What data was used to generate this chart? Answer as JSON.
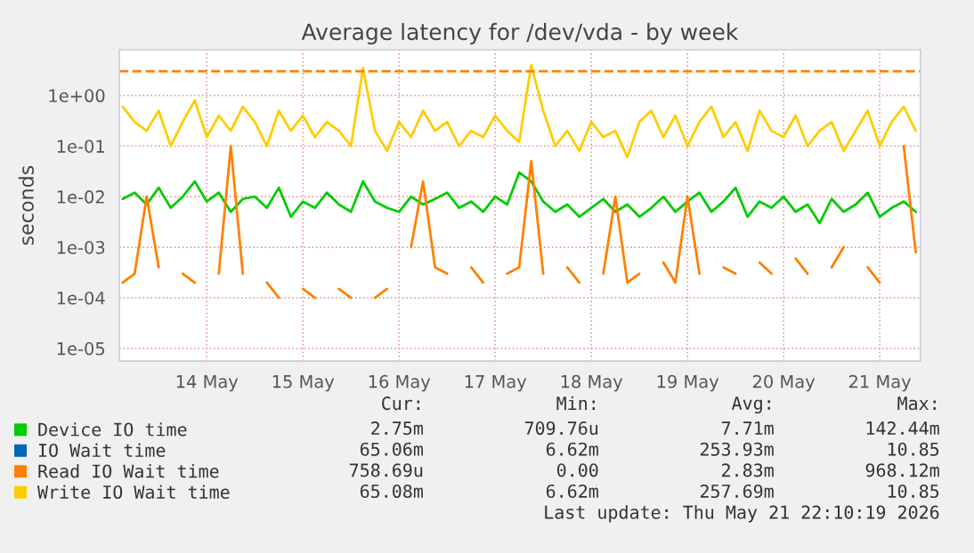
{
  "chart_data": {
    "type": "line",
    "title": "Average latency for /dev/vda - by week",
    "ylabel": "seconds",
    "x": [
      "2026-05-13T15:00",
      "2026-05-13T18:00",
      "2026-05-13T21:00",
      "2026-05-14T00:00",
      "2026-05-14T03:00",
      "2026-05-14T06:00",
      "2026-05-14T09:00",
      "2026-05-14T12:00",
      "2026-05-14T15:00",
      "2026-05-14T18:00",
      "2026-05-14T21:00",
      "2026-05-15T00:00",
      "2026-05-15T03:00",
      "2026-05-15T06:00",
      "2026-05-15T09:00",
      "2026-05-15T12:00",
      "2026-05-15T15:00",
      "2026-05-15T18:00",
      "2026-05-15T21:00",
      "2026-05-16T00:00",
      "2026-05-16T03:00",
      "2026-05-16T06:00",
      "2026-05-16T09:00",
      "2026-05-16T12:00",
      "2026-05-16T15:00",
      "2026-05-16T18:00",
      "2026-05-16T21:00",
      "2026-05-17T00:00",
      "2026-05-17T03:00",
      "2026-05-17T06:00",
      "2026-05-17T09:00",
      "2026-05-17T12:00",
      "2026-05-17T15:00",
      "2026-05-17T18:00",
      "2026-05-17T21:00",
      "2026-05-18T00:00",
      "2026-05-18T03:00",
      "2026-05-18T06:00",
      "2026-05-18T09:00",
      "2026-05-18T12:00",
      "2026-05-18T15:00",
      "2026-05-18T18:00",
      "2026-05-18T21:00",
      "2026-05-19T00:00",
      "2026-05-19T03:00",
      "2026-05-19T06:00",
      "2026-05-19T09:00",
      "2026-05-19T12:00",
      "2026-05-19T15:00",
      "2026-05-19T18:00",
      "2026-05-19T21:00",
      "2026-05-20T00:00",
      "2026-05-20T03:00",
      "2026-05-20T06:00",
      "2026-05-20T09:00",
      "2026-05-20T12:00",
      "2026-05-20T15:00",
      "2026-05-20T18:00",
      "2026-05-20T21:00",
      "2026-05-21T00:00",
      "2026-05-21T03:00",
      "2026-05-21T06:00",
      "2026-05-21T09:00",
      "2026-05-21T12:00",
      "2026-05-21T15:00",
      "2026-05-21T18:00",
      "2026-05-21T21:00"
    ],
    "series": [
      {
        "name": "Device IO time",
        "color": "#00cc00",
        "values": [
          0.009,
          0.012,
          0.007,
          0.015,
          0.006,
          0.01,
          0.02,
          0.008,
          0.012,
          0.005,
          0.009,
          0.01,
          0.006,
          0.015,
          0.004,
          0.008,
          0.006,
          0.012,
          0.007,
          0.005,
          0.02,
          0.008,
          0.006,
          0.005,
          0.01,
          0.007,
          0.009,
          0.012,
          0.006,
          0.008,
          0.005,
          0.01,
          0.007,
          0.03,
          0.02,
          0.008,
          0.005,
          0.007,
          0.004,
          0.006,
          0.009,
          0.005,
          0.007,
          0.004,
          0.006,
          0.01,
          0.005,
          0.008,
          0.012,
          0.005,
          0.008,
          0.015,
          0.004,
          0.008,
          0.006,
          0.01,
          0.005,
          0.007,
          0.003,
          0.009,
          0.005,
          0.007,
          0.012,
          0.004,
          0.006,
          0.008,
          0.005
        ]
      },
      {
        "name": "IO Wait time",
        "color": "#0066b3",
        "values": [
          null,
          null,
          null,
          null,
          null,
          null,
          null,
          null,
          null,
          null,
          null,
          null,
          null,
          null,
          null,
          null,
          null,
          null,
          null,
          null,
          null,
          null,
          null,
          null,
          null,
          null,
          null,
          null,
          null,
          null,
          null,
          null,
          null,
          null,
          null,
          null,
          null,
          null,
          null,
          null,
          null,
          null,
          null,
          null,
          null,
          null,
          null,
          null,
          null,
          null,
          null,
          null,
          null,
          null,
          null,
          null,
          null,
          null,
          null,
          null,
          null,
          null,
          null,
          null,
          null,
          null,
          null
        ]
      },
      {
        "name": "Read IO Wait time",
        "color": "#ff8000",
        "values": [
          0.0002,
          0.0003,
          0.01,
          0.0004,
          null,
          0.0003,
          0.0002,
          null,
          0.0003,
          0.1,
          0.0003,
          null,
          0.0002,
          0.0001,
          null,
          0.00015,
          0.0001,
          null,
          0.00015,
          0.0001,
          null,
          0.0001,
          0.00015,
          null,
          0.001,
          0.02,
          0.0004,
          0.0003,
          null,
          0.0004,
          0.0002,
          null,
          0.0003,
          0.0004,
          0.05,
          0.0003,
          null,
          0.0004,
          0.0002,
          null,
          0.0003,
          0.01,
          0.0002,
          0.0003,
          null,
          0.0005,
          0.0002,
          0.01,
          0.0003,
          null,
          0.0004,
          0.0003,
          null,
          0.0005,
          0.0003,
          null,
          0.0006,
          0.0003,
          null,
          0.0004,
          0.001,
          null,
          0.0004,
          0.0002,
          null,
          0.1,
          0.0008
        ]
      },
      {
        "name": "Write IO Wait time",
        "color": "#ffcc00",
        "values": [
          0.6,
          0.3,
          0.2,
          0.5,
          0.1,
          0.3,
          0.8,
          0.15,
          0.4,
          0.2,
          0.6,
          0.3,
          0.1,
          0.5,
          0.2,
          0.4,
          0.15,
          0.3,
          0.2,
          0.1,
          3.5,
          0.2,
          0.08,
          0.3,
          0.15,
          0.5,
          0.2,
          0.3,
          0.1,
          0.2,
          0.15,
          0.4,
          0.2,
          0.12,
          4.0,
          0.5,
          0.1,
          0.2,
          0.08,
          0.3,
          0.15,
          0.2,
          0.06,
          0.3,
          0.5,
          0.15,
          0.4,
          0.1,
          0.3,
          0.6,
          0.15,
          0.3,
          0.08,
          0.5,
          0.2,
          0.15,
          0.4,
          0.1,
          0.2,
          0.3,
          0.08,
          0.2,
          0.5,
          0.1,
          0.3,
          0.6,
          0.2
        ]
      }
    ],
    "log": "y",
    "ylim": [
      5.6e-06,
      8
    ],
    "yticks": [
      {
        "value": 1e-05,
        "label": "1e-05"
      },
      {
        "value": 0.0001,
        "label": "1e-04"
      },
      {
        "value": 0.001,
        "label": "1e-03"
      },
      {
        "value": 0.01,
        "label": "1e-02"
      },
      {
        "value": 0.1,
        "label": "1e-01"
      },
      {
        "value": 1,
        "label": "1e+00"
      }
    ],
    "xlim": [
      "2026-05-13T14:10",
      "2026-05-21T22:10"
    ],
    "xticks": [
      {
        "value": "2026-05-14T12:00",
        "label": "14 May"
      },
      {
        "value": "2026-05-15T12:00",
        "label": "15 May"
      },
      {
        "value": "2026-05-16T12:00",
        "label": "16 May"
      },
      {
        "value": "2026-05-17T12:00",
        "label": "17 May"
      },
      {
        "value": "2026-05-18T12:00",
        "label": "18 May"
      },
      {
        "value": "2026-05-19T12:00",
        "label": "19 May"
      },
      {
        "value": "2026-05-20T12:00",
        "label": "20 May"
      },
      {
        "value": "2026-05-21T12:00",
        "label": "21 May"
      }
    ],
    "ref_lines": [
      {
        "axis": "y",
        "value": 3,
        "color": "#ff8000",
        "line_style": "dashed"
      }
    ],
    "grid": true,
    "legend": "bottom left",
    "line_style": "solid",
    "marker": "none",
    "annotations": [
      "Cur:",
      "Min:",
      "Avg:",
      "Max:",
      "2.75m",
      "709.76u",
      "7.71m",
      "142.44m",
      "65.06m",
      "6.62m",
      "253.93m",
      "10.85",
      "758.69u",
      "0.00",
      "2.83m",
      "968.12m",
      "65.08m",
      "6.62m",
      "257.69m",
      "10.85",
      "Last update: Thu May 21 22:10:19 2026"
    ]
  }
}
